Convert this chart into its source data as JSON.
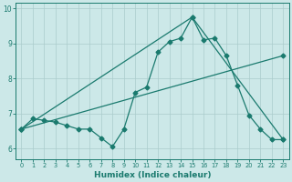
{
  "xlabel": "Humidex (Indice chaleur)",
  "bg_color": "#cce8e8",
  "line_color": "#1a7a6e",
  "grid_color": "#aacccc",
  "xlim": [
    -0.5,
    23.5
  ],
  "ylim": [
    5.7,
    10.15
  ],
  "yticks": [
    6,
    7,
    8,
    9,
    10
  ],
  "xticks": [
    0,
    1,
    2,
    3,
    4,
    5,
    6,
    7,
    8,
    9,
    10,
    11,
    12,
    13,
    14,
    15,
    16,
    17,
    18,
    19,
    20,
    21,
    22,
    23
  ],
  "line1_x": [
    0,
    1,
    2,
    3,
    4,
    5,
    6,
    7,
    8,
    9,
    10,
    11,
    12,
    13,
    14,
    15,
    16,
    17,
    18,
    19,
    20,
    21,
    22,
    23
  ],
  "line1_y": [
    6.55,
    6.85,
    6.8,
    6.75,
    6.65,
    6.55,
    6.55,
    6.3,
    6.05,
    6.55,
    7.6,
    7.75,
    8.75,
    9.05,
    9.15,
    9.75,
    9.1,
    9.15,
    8.65,
    7.8,
    6.95,
    6.55,
    6.25,
    6.25
  ],
  "line2_x": [
    0,
    15,
    23
  ],
  "line2_y": [
    6.55,
    9.75,
    6.25
  ],
  "line3_x": [
    0,
    23
  ],
  "line3_y": [
    6.55,
    8.65
  ],
  "markersize": 2.5,
  "linewidth": 0.9
}
